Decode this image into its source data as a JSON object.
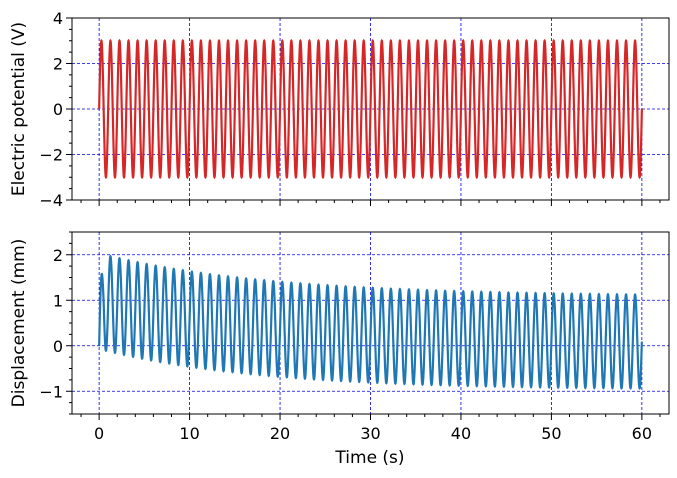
{
  "chart_data": [
    {
      "type": "line",
      "xlabel": "",
      "ylabel": "Electric potential (V)",
      "xlim": [
        -3,
        63
      ],
      "ylim": [
        -4,
        4
      ],
      "x_ticks": [
        0,
        10,
        20,
        30,
        40,
        50,
        60
      ],
      "y_ticks": [
        -4,
        -2,
        0,
        2,
        4
      ],
      "y_tick_labels": [
        "−4",
        "−2",
        "0",
        "2",
        "4"
      ],
      "grid": true,
      "colors": {
        "line": "#d62728",
        "grid": "#0000ee"
      },
      "series": [
        {
          "x_range": [
            0,
            60
          ],
          "function": "sine",
          "amplitude": 3.0,
          "frequency_hz": 1.0,
          "offset": 0
        }
      ]
    },
    {
      "type": "line",
      "xlabel": "Time (s)",
      "ylabel": "Displacement (mm)",
      "xlim": [
        -3,
        63
      ],
      "ylim": [
        -1.5,
        2.5
      ],
      "x_ticks": [
        0,
        10,
        20,
        30,
        40,
        50,
        60
      ],
      "x_tick_labels": [
        "0",
        "10",
        "20",
        "30",
        "40",
        "50",
        "60"
      ],
      "y_ticks": [
        -1,
        0,
        1,
        2
      ],
      "y_tick_labels": [
        "−1",
        "0",
        "1",
        "2"
      ],
      "grid": true,
      "colors": {
        "line": "#1f77b4",
        "grid": "#0000ee"
      },
      "series": [
        {
          "x_range": [
            0,
            60
          ],
          "function": "sine",
          "frequency_hz": 1.0,
          "amplitude_start": 1.05,
          "amplitude_end": 1.03,
          "offset_start": 0.98,
          "offset_end": 0.06,
          "offset_decay_s": 18,
          "x_samples": [
            0,
            1,
            10,
            20,
            30,
            40,
            50,
            60
          ],
          "max_envelope": [
            0,
            2.05,
            1.6,
            1.35,
            1.2,
            1.13,
            1.1,
            1.08
          ],
          "min_envelope": [
            0,
            -0.05,
            -0.45,
            -0.7,
            -0.85,
            -0.92,
            -0.95,
            -0.97
          ]
        }
      ]
    }
  ]
}
